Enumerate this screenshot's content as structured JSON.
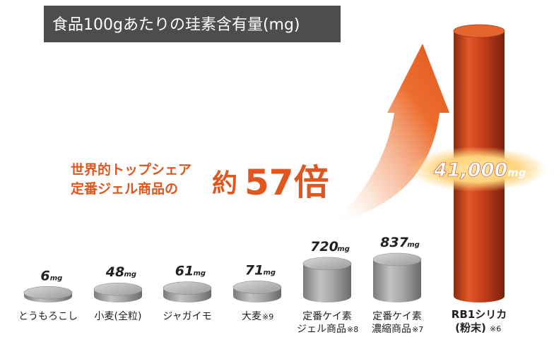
{
  "colors": {
    "title_bg": "#4d4d4d",
    "accent": "#e0561e",
    "highlight_bar": "#c8401c",
    "gray_bar": "#9e9e9e",
    "glow": "#ffd27a"
  },
  "header": {
    "title": "食品100gあたりの珪素含有量(mg)"
  },
  "claim": {
    "line1": "世界的トップシェア",
    "line2": "定番ジェル商品の",
    "prefix": "約",
    "multiplier": "57倍"
  },
  "chart_data": {
    "type": "bar",
    "title": "食品100gあたりの珪素含有量(mg)",
    "unit": "mg",
    "categories": [
      {
        "lines": [
          "とうもろこし"
        ],
        "note": ""
      },
      {
        "lines": [
          "小麦(全粒)"
        ],
        "note": ""
      },
      {
        "lines": [
          "ジャガイモ"
        ],
        "note": ""
      },
      {
        "lines": [
          "大麦"
        ],
        "note": "※9"
      },
      {
        "lines": [
          "定番ケイ素",
          "ジェル商品"
        ],
        "note": "※8"
      },
      {
        "lines": [
          "定番ケイ素",
          "濃縮商品"
        ],
        "note": "※7"
      }
    ],
    "values": [
      6,
      48,
      61,
      71,
      720,
      837
    ],
    "value_labels": [
      "6",
      "48",
      "61",
      "71",
      "720",
      "837"
    ],
    "highlight": {
      "lines": [
        "RB1シリカ",
        "(粉末)"
      ],
      "note": "※6",
      "value": 41000,
      "value_label": "41,000",
      "unit": "mg"
    }
  }
}
